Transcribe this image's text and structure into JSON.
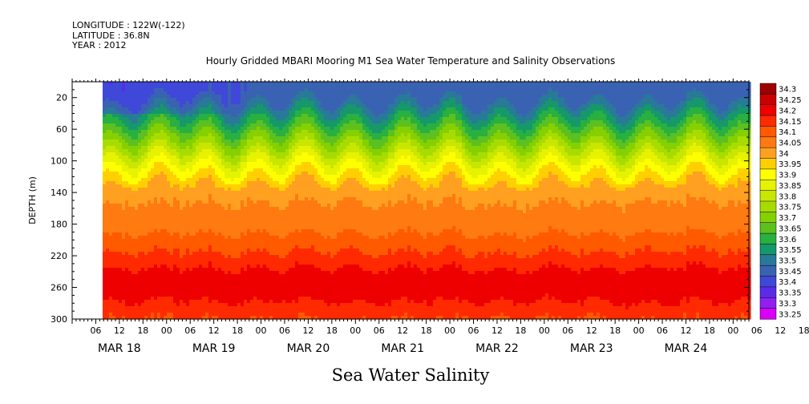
{
  "header": {
    "longitude": "LONGITUDE : 122W(-122)",
    "latitude": "LATITUDE : 36.8N",
    "year": "YEAR : 2012"
  },
  "chart_data": {
    "type": "heatmap",
    "title": "Hourly Gridded MBARI Mooring M1 Sea Water Temperature and Salinity Observations",
    "xlabel": "Sea Water Salinity",
    "ylabel": "DEPTH (m)",
    "ylim": [
      300,
      0
    ],
    "y_ticks": [
      "20",
      "60",
      "100",
      "140",
      "180",
      "220",
      "260",
      "300"
    ],
    "x_range_hours": [
      "MAR 18 00",
      "MAR 25 04"
    ],
    "x_hour_ticks": [
      "06",
      "12",
      "18",
      "00",
      "06",
      "12",
      "18",
      "00",
      "06",
      "12",
      "18",
      "00",
      "06",
      "12",
      "18",
      "00",
      "06",
      "12",
      "18",
      "00",
      "06",
      "12",
      "18",
      "00",
      "06",
      "12",
      "18",
      "00",
      "06",
      "12",
      "18",
      "00"
    ],
    "x_day_labels": [
      "MAR 18",
      "MAR 19",
      "MAR 20",
      "MAR 21",
      "MAR 22",
      "MAR 23",
      "MAR 24"
    ],
    "data_start": "MAR 18 ~09",
    "colorbar": {
      "levels": [
        "34.3",
        "34.25",
        "34.2",
        "34.15",
        "34.1",
        "34.05",
        "34",
        "33.95",
        "33.9",
        "33.85",
        "33.8",
        "33.75",
        "33.7",
        "33.65",
        "33.6",
        "33.55",
        "33.5",
        "33.45",
        "33.4",
        "33.35",
        "33.3",
        "33.25"
      ],
      "colors": [
        "#9c0000",
        "#c80000",
        "#ee0000",
        "#ff2a00",
        "#ff5a00",
        "#ff7a10",
        "#ffa020",
        "#ffd000",
        "#ffff00",
        "#e6f200",
        "#c8e600",
        "#a8dc00",
        "#86d000",
        "#5cc020",
        "#28b040",
        "#16986a",
        "#287a98",
        "#3a62b2",
        "#3f48d8",
        "#5a2ce8",
        "#9020f0",
        "#d800f8"
      ]
    },
    "depth_profile": [
      {
        "depth": 5,
        "value": 33.46
      },
      {
        "depth": 20,
        "value": 33.47
      },
      {
        "depth": 40,
        "value": 33.56
      },
      {
        "depth": 60,
        "value": 33.66
      },
      {
        "depth": 80,
        "value": 33.76
      },
      {
        "depth": 100,
        "value": 33.87
      },
      {
        "depth": 120,
        "value": 33.96
      },
      {
        "depth": 140,
        "value": 34.03
      },
      {
        "depth": 160,
        "value": 34.06
      },
      {
        "depth": 180,
        "value": 34.07
      },
      {
        "depth": 200,
        "value": 34.12
      },
      {
        "depth": 220,
        "value": 34.16
      },
      {
        "depth": 240,
        "value": 34.21
      },
      {
        "depth": 250,
        "value": 34.24
      },
      {
        "depth": 260,
        "value": 34.24
      },
      {
        "depth": 270,
        "value": 34.22
      },
      {
        "depth": 290,
        "value": 34.17
      },
      {
        "depth": 300,
        "value": 34.15
      }
    ]
  }
}
